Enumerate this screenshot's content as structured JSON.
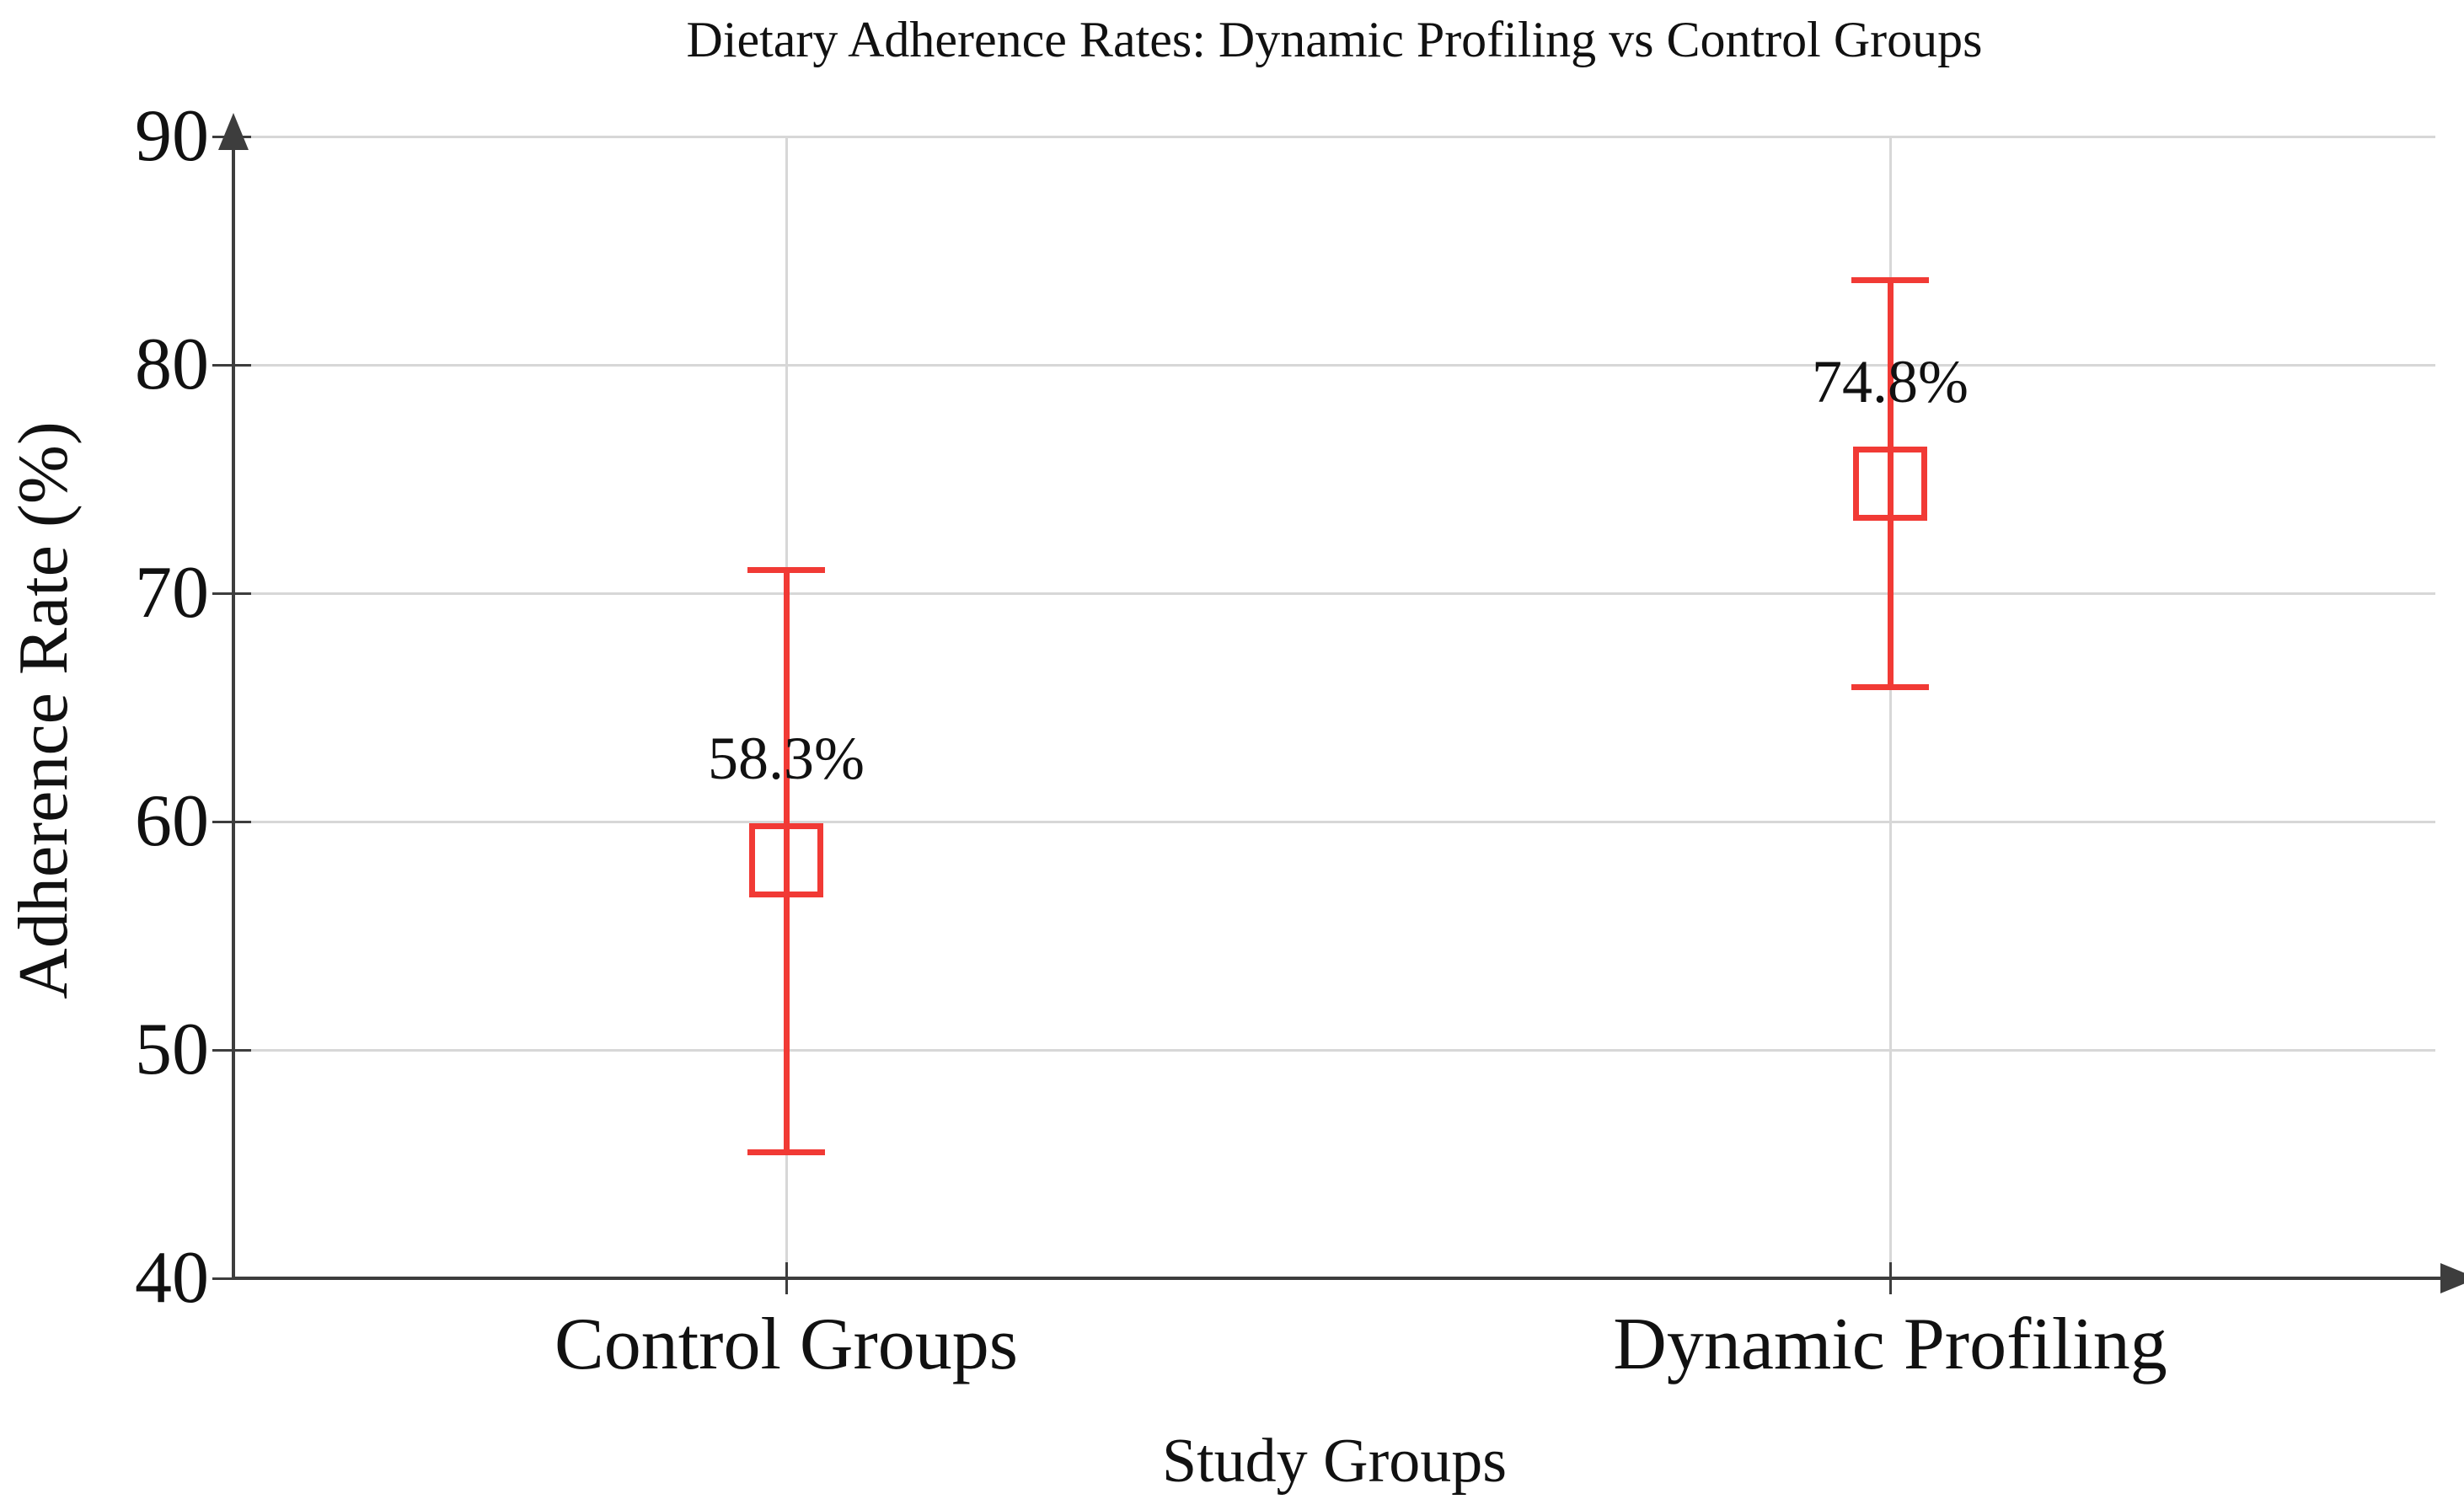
{
  "chart_data": {
    "type": "scatter",
    "title": "Dietary Adherence Rates: Dynamic Profiling vs Control Groups",
    "xlabel": "Study Groups",
    "ylabel": "Adherence Rate (%)",
    "ylim": [
      40,
      90
    ],
    "yticks": [
      40,
      50,
      60,
      70,
      80,
      90
    ],
    "ytick_labels": [
      "40",
      "50",
      "60",
      "70",
      "80",
      "90"
    ],
    "grid": "on",
    "legend": "none",
    "marker": "open-square",
    "categories": [
      "Control Groups",
      "Dynamic Profiling"
    ],
    "points": [
      {
        "category": "Control Groups",
        "value": 58.3,
        "label": "58.3%",
        "error_low": 45.5,
        "error_high": 71.0
      },
      {
        "category": "Dynamic Profiling",
        "value": 74.8,
        "label": "74.8%",
        "error_low": 65.9,
        "error_high": 83.7
      }
    ]
  },
  "colors": {
    "series": "#f13a35",
    "grid": "#d7d7d7",
    "axis": "#3d3d3d",
    "text": "#111111",
    "background": "#ffffff"
  }
}
